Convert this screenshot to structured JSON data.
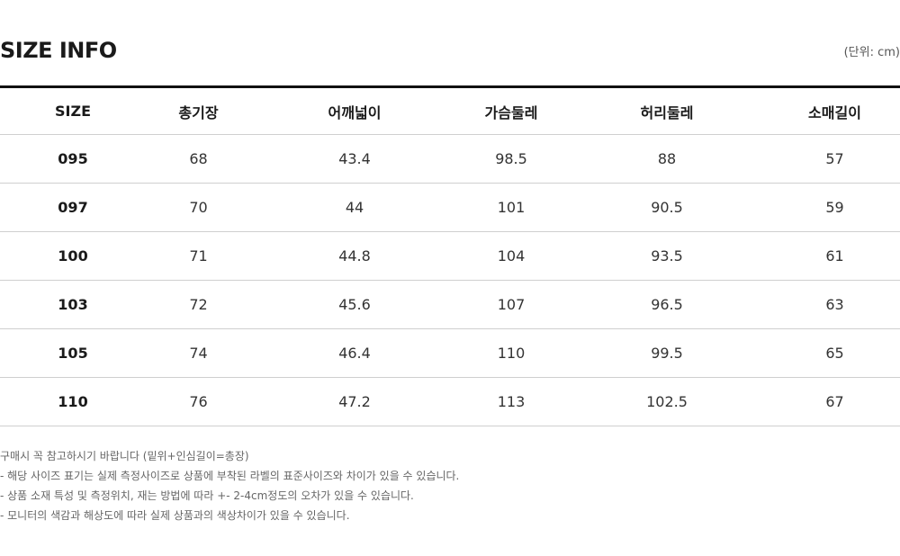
{
  "header": {
    "title": "SIZE INFO",
    "unit": "(단위: cm)"
  },
  "table": {
    "columns": [
      "SIZE",
      "총기장",
      "어깨넓이",
      "가슴둘레",
      "허리둘레",
      "소매길이"
    ],
    "rows": [
      [
        "095",
        "68",
        "43.4",
        "98.5",
        "88",
        "57"
      ],
      [
        "097",
        "70",
        "44",
        "101",
        "90.5",
        "59"
      ],
      [
        "100",
        "71",
        "44.8",
        "104",
        "93.5",
        "61"
      ],
      [
        "103",
        "72",
        "45.6",
        "107",
        "96.5",
        "63"
      ],
      [
        "105",
        "74",
        "46.4",
        "110",
        "99.5",
        "65"
      ],
      [
        "110",
        "76",
        "47.2",
        "113",
        "102.5",
        "67"
      ]
    ]
  },
  "notes": [
    "구매시 꼭 참고하시기 바랍니다 (밑위+인심길이=총장)",
    "- 해당 사이즈 표기는 실제 측정사이즈로 상품에 부착된 라벨의 표준사이즈와 차이가 있을 수 있습니다.",
    "- 상품 소재 특성 및 측정위치, 재는 방법에 따라 +- 2-4cm정도의 오차가 있을 수 있습니다.",
    "- 모니터의 색감과 해상도에 따라 실제 상품과의 색상차이가 있을 수 있습니다."
  ]
}
